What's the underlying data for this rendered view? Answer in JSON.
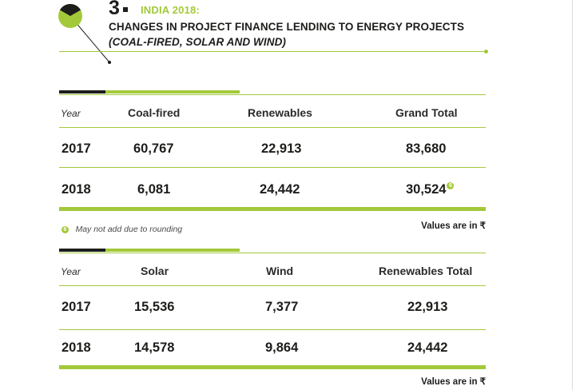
{
  "figure": {
    "number": "3",
    "kicker": "INDIA 2018:",
    "title": "CHANGES IN PROJECT FINANCE LENDING TO ENERGY PROJECTS",
    "subtitle": "(COAL-FIRED, SOLAR AND WIND)"
  },
  "colors": {
    "accent": "#a3c93a",
    "dark": "#1d1d1b"
  },
  "table1": {
    "headers": [
      "Year",
      "Coal-fired",
      "Renewables",
      "Grand Total"
    ],
    "rows": [
      [
        "2017",
        "60,767",
        "22,913",
        "83,680"
      ],
      [
        "2018",
        "6,081",
        "24,442",
        "30,524"
      ]
    ],
    "note_marker": "6",
    "footnote": "May not add due to rounding",
    "units_note": "Values are in ₹"
  },
  "table2": {
    "headers": [
      "Year",
      "Solar",
      "Wind",
      "Renewables Total"
    ],
    "rows": [
      [
        "2017",
        "15,536",
        "7,377",
        "22,913"
      ],
      [
        "2018",
        "14,578",
        "9,864",
        "24,442"
      ]
    ],
    "units_note": "Values are in ₹"
  }
}
